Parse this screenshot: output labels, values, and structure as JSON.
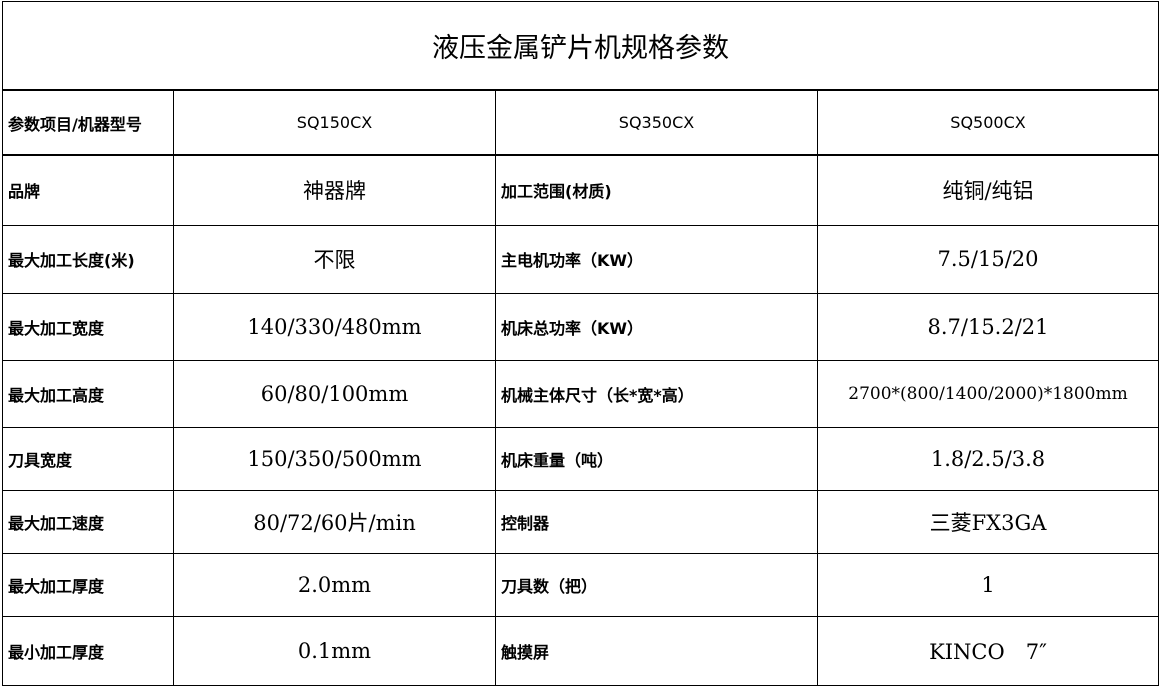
{
  "title": "液压金属铲片机规格参数",
  "header": {
    "label": "参数项目/机器型号",
    "models": [
      "SQ150CX",
      "SQ350CX",
      "SQ500CX"
    ]
  },
  "rows": [
    {
      "label1": "品牌",
      "value1": "神器牌",
      "label2": "加工范围(材质)",
      "value2": "纯铜/纯铝"
    },
    {
      "label1": "最大加工长度(米)",
      "value1": "不限",
      "label2": "主电机功率（KW）",
      "value2": "7.5/15/20"
    },
    {
      "label1": "最大加工宽度",
      "value1": "140/330/480mm",
      "label2": "机床总功率（KW）",
      "value2": "8.7/15.2/21"
    },
    {
      "label1": "最大加工高度",
      "value1": "60/80/100mm",
      "label2": "机械主体尺寸（长*宽*高）",
      "value2": "2700*(800/1400/2000)*1800mm"
    },
    {
      "label1": "刀具宽度",
      "value1": "150/350/500mm",
      "label2": "机床重量（吨）",
      "value2": "1.8/2.5/3.8"
    },
    {
      "label1": "最大加工速度",
      "value1": "80/72/60片/min",
      "label2": "控制器",
      "value2": "三菱FX3GA"
    },
    {
      "label1": "最大加工厚度",
      "value1": "2.0mm",
      "label2": "刀具数（把）",
      "value2": "1"
    },
    {
      "label1": "最小加工厚度",
      "value1": "0.1mm",
      "label2": "触摸屏",
      "value2": "KINCO　7″"
    }
  ]
}
